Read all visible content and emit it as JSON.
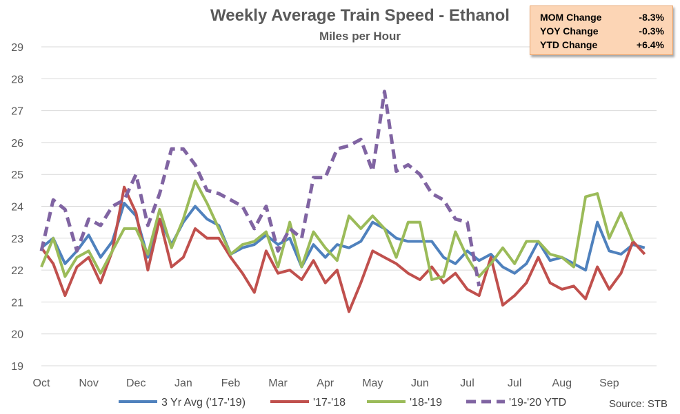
{
  "header": {
    "title": "Weekly Average Train Speed - Ethanol",
    "subtitle": "Miles per Hour"
  },
  "stats": [
    {
      "label": "MOM Change",
      "value": "-8.3%"
    },
    {
      "label": "YOY Change",
      "value": "-0.3%"
    },
    {
      "label": "YTD Change",
      "value": "+6.4%"
    }
  ],
  "source": "Source:  STB",
  "colors": {
    "avg": "#4f81bd",
    "y1718": "#c0504d",
    "y1819": "#9bbb59",
    "y1920": "#8064a2",
    "grid": "#d9d9d9",
    "stats_bg": "#fcd5b5"
  },
  "chart_data": {
    "type": "line",
    "title": "Weekly Average Train Speed - Ethanol",
    "subtitle": "Miles per Hour",
    "ylim": [
      19,
      29
    ],
    "yticks": [
      19,
      20,
      21,
      22,
      23,
      24,
      25,
      26,
      27,
      28,
      29
    ],
    "month_labels": [
      "Oct",
      "Nov",
      "Dec",
      "Jan",
      "Feb",
      "Mar",
      "Apr",
      "May",
      "Jun",
      "Jul",
      "Jul",
      "Aug",
      "Sep"
    ],
    "weeks": 53,
    "grid": "horizontal",
    "legend_position": "bottom",
    "series": [
      {
        "name": "3 Yr Avg ('17-'19)",
        "key": "avg",
        "dash": false,
        "values": [
          22.7,
          23.0,
          22.2,
          22.6,
          23.1,
          22.4,
          22.9,
          24.1,
          23.7,
          22.4,
          23.6,
          22.8,
          23.5,
          24.0,
          23.6,
          23.4,
          22.5,
          22.7,
          22.8,
          23.1,
          22.8,
          23.0,
          22.1,
          22.8,
          22.4,
          22.8,
          22.7,
          22.9,
          23.5,
          23.3,
          23.0,
          22.9,
          22.9,
          22.9,
          22.4,
          22.2,
          22.6,
          22.3,
          22.5,
          22.1,
          21.9,
          22.2,
          22.9,
          22.3,
          22.4,
          22.2,
          22.0,
          23.5,
          22.6,
          22.5,
          22.8,
          22.7,
          null
        ]
      },
      {
        "name": "'17-'18",
        "key": "y1718",
        "dash": false,
        "values": [
          22.7,
          22.2,
          21.2,
          22.1,
          22.4,
          21.6,
          22.6,
          24.6,
          23.8,
          22.0,
          23.6,
          22.1,
          22.4,
          23.3,
          23.0,
          23.0,
          22.4,
          21.9,
          21.3,
          22.6,
          21.9,
          22.0,
          21.7,
          22.3,
          21.6,
          22.0,
          20.7,
          21.6,
          22.6,
          22.4,
          22.2,
          21.9,
          21.7,
          22.1,
          21.6,
          21.9,
          21.4,
          21.2,
          22.4,
          20.9,
          21.2,
          21.6,
          22.4,
          21.6,
          21.4,
          21.5,
          21.1,
          22.1,
          21.4,
          21.9,
          22.9,
          22.5,
          null
        ]
      },
      {
        "name": "'18-'19",
        "key": "y1819",
        "dash": false,
        "values": [
          22.1,
          23.0,
          21.8,
          22.4,
          22.6,
          21.9,
          22.6,
          23.3,
          23.3,
          22.5,
          23.9,
          22.7,
          23.6,
          24.8,
          24.1,
          23.3,
          22.5,
          22.8,
          22.9,
          23.2,
          22.1,
          23.5,
          22.1,
          23.2,
          22.7,
          22.3,
          23.7,
          23.3,
          23.7,
          23.3,
          22.4,
          23.5,
          23.5,
          21.7,
          21.8,
          23.2,
          22.4,
          21.8,
          22.2,
          22.7,
          22.2,
          22.9,
          22.9,
          22.5,
          22.4,
          22.1,
          24.3,
          24.4,
          23.0,
          23.8,
          22.9,
          null,
          null
        ]
      },
      {
        "name": "'19-'20 YTD",
        "key": "y1920",
        "dash": true,
        "values": [
          22.6,
          24.2,
          23.9,
          22.6,
          23.6,
          23.4,
          24.0,
          24.2,
          25.0,
          23.4,
          24.4,
          25.8,
          25.8,
          25.3,
          24.5,
          24.4,
          24.2,
          24.0,
          23.3,
          24.0,
          22.6,
          23.3,
          23.0,
          24.9,
          24.9,
          25.8,
          25.9,
          26.1,
          25.1,
          27.6,
          25.1,
          25.3,
          25.0,
          24.4,
          24.2,
          23.6,
          23.5,
          21.5,
          null,
          null,
          null,
          null,
          null,
          null,
          null,
          null,
          null,
          null,
          null,
          null,
          null,
          null,
          null
        ]
      }
    ]
  }
}
